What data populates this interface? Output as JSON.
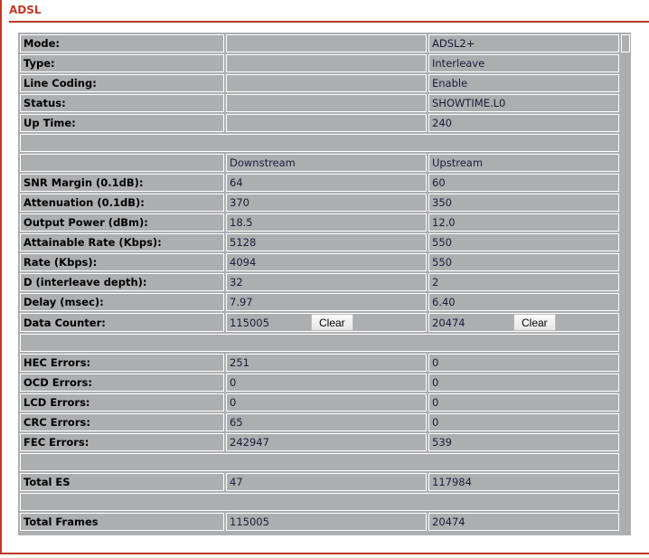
{
  "title": "ADSL",
  "info": [
    {
      "label": "Mode:",
      "value": "ADSL2+"
    },
    {
      "label": "Type:",
      "value": "Interleave"
    },
    {
      "label": "Line Coding:",
      "value": "Enable"
    },
    {
      "label": "Status:",
      "value": "SHOWTIME.L0"
    },
    {
      "label": "Up Time:",
      "value": "240"
    }
  ],
  "headers": {
    "downstream": "Downstream",
    "upstream": "Upstream"
  },
  "stats": [
    {
      "label": "SNR Margin (0.1dB):",
      "down": "64",
      "up": "60"
    },
    {
      "label": "Attenuation (0.1dB):",
      "down": "370",
      "up": "350"
    },
    {
      "label": "Output Power (dBm):",
      "down": "18.5",
      "up": "12.0"
    },
    {
      "label": "Attainable Rate (Kbps):",
      "down": "5128",
      "up": "550"
    },
    {
      "label": "Rate (Kbps):",
      "down": "4094",
      "up": "550"
    },
    {
      "label": "D (interleave depth):",
      "down": "32",
      "up": "2"
    },
    {
      "label": "Delay (msec):",
      "down": "7.97",
      "up": "6.40"
    }
  ],
  "data_counter": {
    "label": "Data Counter:",
    "down": "115005",
    "up": "20474",
    "clear_label": "Clear"
  },
  "errors": [
    {
      "label": "HEC Errors:",
      "down": "251",
      "up": "0"
    },
    {
      "label": "OCD Errors:",
      "down": "0",
      "up": "0"
    },
    {
      "label": "LCD Errors:",
      "down": "0",
      "up": "0"
    },
    {
      "label": "CRC Errors:",
      "down": "65",
      "up": "0"
    },
    {
      "label": "FEC Errors:",
      "down": "242947",
      "up": "539"
    }
  ],
  "total_es": {
    "label": "Total ES",
    "down": "47",
    "up": "117984"
  },
  "total_frames": {
    "label": "Total Frames",
    "down": "115005",
    "up": "20474"
  }
}
